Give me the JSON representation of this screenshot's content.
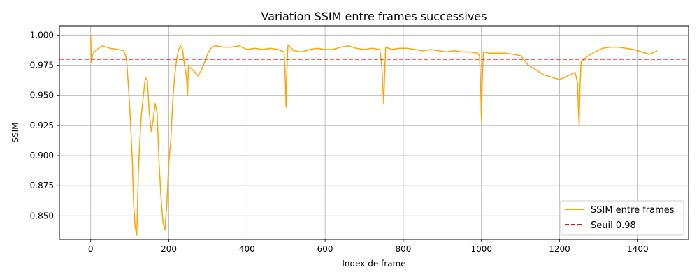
{
  "chart_data": {
    "type": "line",
    "title": "Variation SSIM entre frames successives",
    "xlabel": "Index de frame",
    "ylabel": "SSIM",
    "xlim": [
      -80,
      1530
    ],
    "ylim": [
      0.8305,
      1.0077
    ],
    "xticks": [
      0,
      200,
      400,
      600,
      800,
      1000,
      1200,
      1400
    ],
    "yticks": [
      0.85,
      0.875,
      0.9,
      0.925,
      0.95,
      0.975,
      1.0
    ],
    "grid": true,
    "legend_position": "bottom-right",
    "series": [
      {
        "name": "SSIM entre frames",
        "color": "#ffa500",
        "style": "solid",
        "x": [
          0,
          2,
          5,
          10,
          20,
          30,
          50,
          70,
          85,
          92,
          96,
          100,
          106,
          110,
          114,
          118,
          122,
          126,
          130,
          135,
          140,
          145,
          150,
          155,
          160,
          165,
          170,
          175,
          180,
          185,
          190,
          195,
          200,
          205,
          210,
          215,
          220,
          225,
          230,
          235,
          240,
          245,
          248,
          250,
          252,
          255,
          265,
          275,
          285,
          295,
          300,
          310,
          320,
          340,
          360,
          380,
          400,
          420,
          440,
          460,
          480,
          495,
          498,
          500,
          502,
          505,
          520,
          540,
          560,
          580,
          600,
          620,
          640,
          660,
          680,
          700,
          720,
          740,
          745,
          748,
          750,
          752,
          755,
          770,
          790,
          810,
          830,
          850,
          870,
          890,
          910,
          930,
          950,
          970,
          990,
          995,
          998,
          1000,
          1002,
          1005,
          1020,
          1040,
          1060,
          1080,
          1100,
          1110,
          1120,
          1140,
          1160,
          1180,
          1200,
          1220,
          1240,
          1246,
          1248,
          1250,
          1252,
          1255,
          1270,
          1290,
          1310,
          1330,
          1350,
          1370,
          1390,
          1410,
          1430,
          1450
        ],
        "y": [
          0.999,
          0.977,
          0.984,
          0.986,
          0.989,
          0.991,
          0.989,
          0.988,
          0.987,
          0.98,
          0.96,
          0.94,
          0.9,
          0.86,
          0.84,
          0.834,
          0.885,
          0.915,
          0.935,
          0.95,
          0.965,
          0.962,
          0.935,
          0.92,
          0.93,
          0.943,
          0.935,
          0.895,
          0.865,
          0.845,
          0.838,
          0.86,
          0.895,
          0.912,
          0.945,
          0.966,
          0.98,
          0.988,
          0.991,
          0.988,
          0.975,
          0.965,
          0.95,
          0.975,
          0.972,
          0.973,
          0.97,
          0.966,
          0.972,
          0.98,
          0.985,
          0.99,
          0.991,
          0.99,
          0.99,
          0.991,
          0.988,
          0.989,
          0.988,
          0.989,
          0.988,
          0.986,
          0.965,
          0.94,
          0.97,
          0.992,
          0.987,
          0.986,
          0.988,
          0.989,
          0.988,
          0.988,
          0.99,
          0.991,
          0.989,
          0.988,
          0.989,
          0.988,
          0.975,
          0.955,
          0.943,
          0.965,
          0.99,
          0.988,
          0.989,
          0.989,
          0.988,
          0.987,
          0.988,
          0.987,
          0.986,
          0.987,
          0.986,
          0.986,
          0.985,
          0.983,
          0.96,
          0.929,
          0.96,
          0.986,
          0.985,
          0.985,
          0.985,
          0.984,
          0.983,
          0.979,
          0.975,
          0.971,
          0.967,
          0.965,
          0.963,
          0.966,
          0.969,
          0.96,
          0.94,
          0.925,
          0.955,
          0.978,
          0.982,
          0.986,
          0.989,
          0.99,
          0.99,
          0.989,
          0.988,
          0.986,
          0.984,
          0.987
        ]
      },
      {
        "name": "Seuil 0.98",
        "color": "#ff0000",
        "style": "dashed",
        "x": [
          -80,
          1530
        ],
        "y": [
          0.98,
          0.98
        ]
      }
    ]
  }
}
